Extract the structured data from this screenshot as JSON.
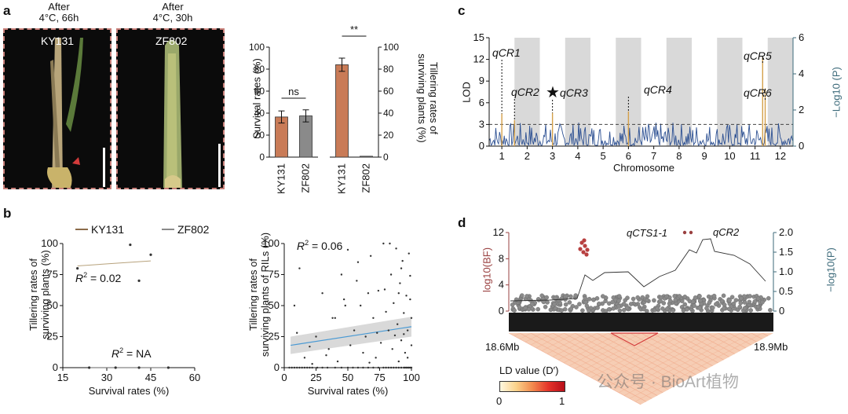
{
  "panel_labels": {
    "a": "a",
    "b": "b",
    "c": "c",
    "d": "d"
  },
  "panel_a": {
    "photos": [
      {
        "header": "After\n4°C, 66h",
        "label": "KY131"
      },
      {
        "header": "After\n4°C, 30h",
        "label": "ZF802"
      }
    ],
    "charts": [
      {
        "type": "bar",
        "ylabel": "Survival rates (%)",
        "categories": [
          "KY131",
          "ZF802"
        ],
        "values": [
          36.5,
          37.5
        ],
        "errors": [
          5.5,
          5.5
        ],
        "ylim": [
          0,
          100
        ],
        "yticks": [
          0,
          20,
          40,
          60,
          80,
          100
        ],
        "significance": "ns"
      },
      {
        "type": "bar",
        "ylabel": "Tillering rates of\nsurviving plants (%)",
        "categories": [
          "KY131",
          "ZF802"
        ],
        "values": [
          84,
          0.8
        ],
        "errors": [
          6,
          0
        ],
        "ylim": [
          0,
          100
        ],
        "yticks": [
          0,
          20,
          40,
          60,
          80,
          100
        ],
        "significance": "**"
      }
    ],
    "colors": {
      "KY131": "#c97b57",
      "ZF802": "#8a8a8a"
    }
  },
  "panel_b": {
    "legend": [
      {
        "name": "KY131",
        "color": "#8b6b4a"
      },
      {
        "name": "ZF802",
        "color": "#8a8a8a"
      }
    ],
    "left": {
      "type": "scatter",
      "xlabel": "Survival rates (%)",
      "ylabel": "Tillering rates of\nsurviving plants (%)",
      "xlim": [
        15,
        60
      ],
      "ylim": [
        0,
        100
      ],
      "xticks": [
        15,
        30,
        45,
        60
      ],
      "yticks": [
        0,
        25,
        50,
        75,
        100
      ],
      "series": [
        {
          "name": "KY131",
          "x": [
            20,
            38,
            41,
            45
          ],
          "y": [
            80,
            99,
            70,
            91
          ],
          "fit": [
            [
              20,
              82
            ],
            [
              45,
              86
            ]
          ],
          "r2_label": "R",
          "r2_value": "2",
          "r2_rest": " = 0.02"
        },
        {
          "name": "ZF802",
          "x": [
            24,
            33,
            41,
            51
          ],
          "y": [
            0,
            0,
            0,
            0
          ],
          "fit": [
            [
              24,
              0
            ],
            [
              51,
              0
            ]
          ],
          "r2_label": "R",
          "r2_value": "2",
          "r2_rest": " = NA"
        }
      ]
    },
    "right": {
      "type": "scatter",
      "xlabel": "Survival rates (%)",
      "ylabel": "Tillering rates of\nsurviving plants of RILs (%)",
      "xlim": [
        0,
        100
      ],
      "ylim": [
        0,
        100
      ],
      "xticks": [
        0,
        25,
        50,
        75,
        100
      ],
      "yticks": [
        0,
        25,
        50,
        75,
        100
      ],
      "r2_label": "R",
      "r2_value": "2",
      "r2_rest": " = 0.06",
      "fit": [
        [
          5,
          18
        ],
        [
          100,
          33
        ]
      ],
      "points": [
        [
          8,
          50
        ],
        [
          10,
          28
        ],
        [
          12,
          80
        ],
        [
          16,
          8
        ],
        [
          20,
          17
        ],
        [
          25,
          25
        ],
        [
          30,
          60
        ],
        [
          33,
          10
        ],
        [
          38,
          40
        ],
        [
          40,
          40
        ],
        [
          42,
          5
        ],
        [
          45,
          75
        ],
        [
          48,
          50
        ],
        [
          50,
          95
        ],
        [
          52,
          18
        ],
        [
          55,
          30
        ],
        [
          58,
          85
        ],
        [
          60,
          50
        ],
        [
          62,
          12
        ],
        [
          64,
          25
        ],
        [
          66,
          60
        ],
        [
          68,
          90
        ],
        [
          70,
          40
        ],
        [
          72,
          8
        ],
        [
          74,
          62
        ],
        [
          76,
          20
        ],
        [
          78,
          100
        ],
        [
          80,
          45
        ],
        [
          82,
          30
        ],
        [
          84,
          75
        ],
        [
          85,
          15
        ],
        [
          86,
          52
        ],
        [
          88,
          96
        ],
        [
          89,
          35
        ],
        [
          90,
          5
        ],
        [
          91,
          68
        ],
        [
          92,
          22
        ],
        [
          93,
          86
        ],
        [
          94,
          44
        ],
        [
          95,
          12
        ],
        [
          96,
          58
        ],
        [
          97,
          30
        ],
        [
          98,
          92
        ],
        [
          99,
          74
        ],
        [
          100,
          40
        ],
        [
          100,
          18
        ],
        [
          99,
          55
        ],
        [
          97,
          8
        ],
        [
          94,
          27
        ],
        [
          92,
          80
        ],
        [
          90,
          60
        ],
        [
          87,
          26
        ],
        [
          83,
          100
        ],
        [
          79,
          63
        ],
        [
          73,
          28
        ],
        [
          67,
          4
        ],
        [
          57,
          70
        ],
        [
          47,
          55
        ],
        [
          35,
          15
        ],
        [
          22,
          3
        ]
      ],
      "zero_x": [
        4,
        6,
        8,
        10,
        12,
        14,
        16,
        18,
        20,
        22,
        26,
        30,
        34,
        40,
        45,
        50,
        54,
        58,
        62,
        66,
        70,
        74,
        78,
        80,
        82,
        84,
        86,
        88,
        90,
        92,
        94,
        95,
        96,
        97,
        98,
        99,
        100
      ]
    }
  },
  "panel_c": {
    "type": "line",
    "ylabel": "LOD",
    "y2label": "−Log10 (P)",
    "xlabel": "Chromosome",
    "yticks": [
      0,
      3,
      6,
      9,
      12,
      15
    ],
    "y2ticks": [
      0,
      2,
      4,
      6
    ],
    "chromosomes": [
      "1",
      "2",
      "3",
      "4",
      "5",
      "6",
      "7",
      "8",
      "9",
      "10",
      "11",
      "12"
    ],
    "threshold": 3,
    "qtl": [
      {
        "name": "qCR1",
        "chr": 1,
        "lod": 4.5
      },
      {
        "name": "qCR2",
        "chr": 1.5,
        "lod": 3.6,
        "star": true
      },
      {
        "name": "qCR3",
        "chr": 3,
        "lod": 4.6
      },
      {
        "name": "qCR4",
        "chr": 6,
        "lod": 4.8
      },
      {
        "name": "qCR5",
        "chr": 11.3,
        "lod": 12.3
      },
      {
        "name": "qCR6",
        "chr": 11.4,
        "lod": 8.0
      }
    ]
  },
  "panel_d": {
    "ylabel": "log10(BF)",
    "y2label": "−log10(P)",
    "yticks": [
      0,
      4,
      8,
      12
    ],
    "y2ticks": [
      "0",
      "0.5",
      "1.0",
      "1.5",
      "2.0"
    ],
    "annotations": [
      {
        "name": "qCTS1-1",
        "color": "#9a4040"
      },
      {
        "name": "qCR2",
        "color": "#3c6a7a"
      }
    ],
    "x_start": "18.6Mb",
    "x_end": "18.9Mb",
    "legend_title": "LD value (D′)",
    "legend_min": "0",
    "legend_max": "1"
  },
  "watermark": "公众号 · BioArt植物"
}
